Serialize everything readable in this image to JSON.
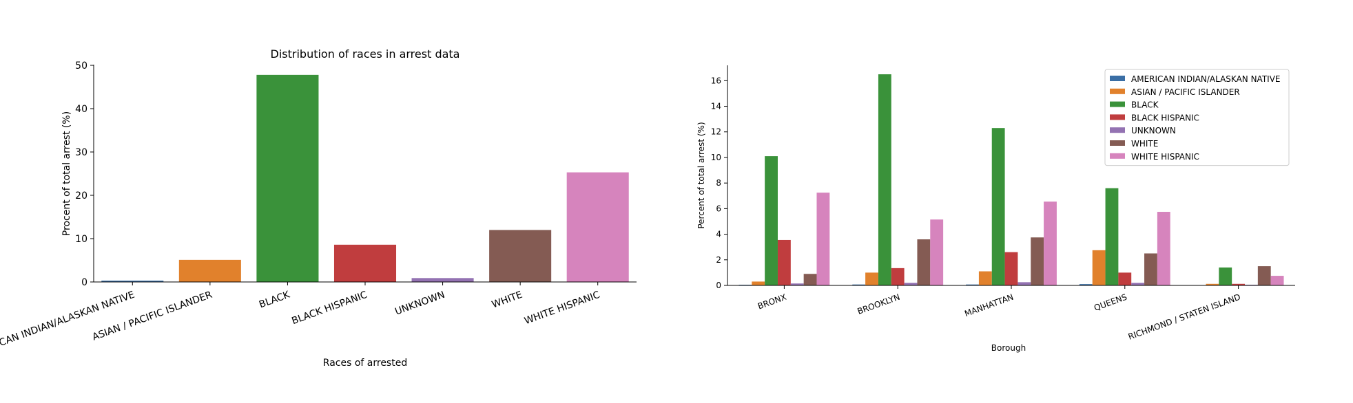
{
  "chart_data": [
    {
      "type": "bar",
      "title": "Distribution of races in arrest data",
      "xlabel": "Races of arrested",
      "ylabel": "Procent of total arrest (%)",
      "ylim": [
        0,
        50
      ],
      "yticks": [
        0,
        10,
        20,
        30,
        40,
        50
      ],
      "grid": false,
      "categories": [
        "AMERICAN INDIAN/ALASKAN NATIVE",
        "ASIAN / PACIFIC ISLANDER",
        "BLACK",
        "BLACK HISPANIC",
        "UNKNOWN",
        "WHITE",
        "WHITE HISPANIC"
      ],
      "values": [
        0.3,
        5.1,
        47.8,
        8.6,
        0.9,
        12.0,
        25.3
      ],
      "colors": [
        "#3a6ea5",
        "#e1812c",
        "#3a923a",
        "#c03d3e",
        "#9372b2",
        "#845b53",
        "#d684bd"
      ]
    },
    {
      "type": "bar",
      "title": "",
      "xlabel": "Borough",
      "ylabel": "Percent of total arrest (%)",
      "ylim": [
        0,
        17.2
      ],
      "yticks": [
        0,
        2,
        4,
        6,
        8,
        10,
        12,
        14,
        16
      ],
      "grid": false,
      "legend_position": "top-right",
      "categories": [
        "BRONX",
        "BROOKLYN",
        "MANHATTAN",
        "QUEENS",
        "RICHMOND / STATEN ISLAND"
      ],
      "series": [
        {
          "name": "AMERICAN INDIAN/ALASKAN NATIVE",
          "color": "#3a6ea5",
          "values": [
            0.05,
            0.07,
            0.07,
            0.1,
            0.02
          ]
        },
        {
          "name": "ASIAN / PACIFIC ISLANDER",
          "color": "#e1812c",
          "values": [
            0.3,
            1.0,
            1.1,
            2.75,
            0.12
          ]
        },
        {
          "name": "BLACK",
          "color": "#3a923a",
          "values": [
            10.1,
            16.5,
            12.3,
            7.6,
            1.4
          ]
        },
        {
          "name": "BLACK HISPANIC",
          "color": "#c03d3e",
          "values": [
            3.55,
            1.35,
            2.6,
            1.0,
            0.12
          ]
        },
        {
          "name": "UNKNOWN",
          "color": "#9372b2",
          "values": [
            0.15,
            0.2,
            0.25,
            0.2,
            0.05
          ]
        },
        {
          "name": "WHITE",
          "color": "#845b53",
          "values": [
            0.9,
            3.6,
            3.75,
            2.5,
            1.5
          ]
        },
        {
          "name": "WHITE HISPANIC",
          "color": "#d684bd",
          "values": [
            7.25,
            5.15,
            6.55,
            5.75,
            0.75
          ]
        }
      ]
    }
  ]
}
